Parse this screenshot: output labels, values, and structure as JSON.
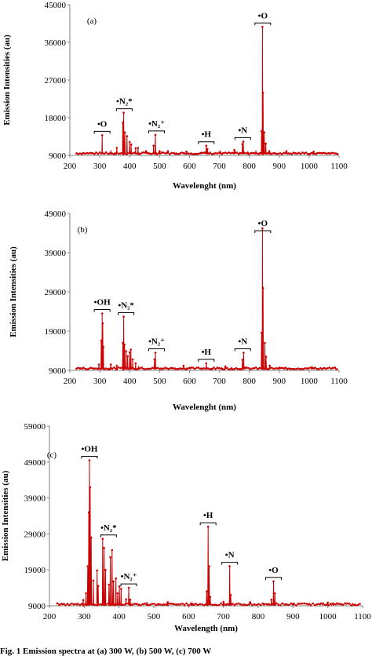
{
  "caption": "Fig. 1  Emission spectra at (a) 300 W, (b) 500 W, (c) 700 W",
  "chart_data": [
    {
      "type": "line",
      "panel_label": "(a)",
      "xlabel": "Wavelenght (nm)",
      "ylabel": "Emission Intensities (au)",
      "xlim": [
        200,
        1100
      ],
      "ylim": [
        9000,
        45000
      ],
      "xticks": [
        "200",
        "300",
        "400",
        "500",
        "600",
        "700",
        "800",
        "900",
        "1000",
        "1100"
      ],
      "yticks": [
        "9000",
        "18000",
        "27000",
        "36000",
        "45000"
      ],
      "color": "#cc0000",
      "baseline": 9500,
      "peaks": [
        [
          308,
          13800
        ],
        [
          337,
          10200
        ],
        [
          357,
          10800
        ],
        [
          377,
          16800
        ],
        [
          380,
          19200
        ],
        [
          384,
          14500
        ],
        [
          391,
          13600
        ],
        [
          400,
          12200
        ],
        [
          405,
          11600
        ],
        [
          420,
          10700
        ],
        [
          428,
          10800
        ],
        [
          455,
          10000
        ],
        [
          480,
          11300
        ],
        [
          486,
          13900
        ],
        [
          500,
          10000
        ],
        [
          528,
          10000
        ],
        [
          590,
          9900
        ],
        [
          656,
          11300
        ],
        [
          660,
          10500
        ],
        [
          703,
          10200
        ],
        [
          750,
          10300
        ],
        [
          777,
          11700
        ],
        [
          780,
          12300
        ],
        [
          795,
          10000
        ],
        [
          822,
          10200
        ],
        [
          841,
          14800
        ],
        [
          844,
          39700
        ],
        [
          846,
          24000
        ],
        [
          850,
          14500
        ],
        [
          855,
          11800
        ],
        [
          867,
          10000
        ],
        [
          924,
          10000
        ],
        [
          1015,
          9900
        ]
      ],
      "annotations": [
        {
          "text": "•O",
          "x": 308
        },
        {
          "text": "•N₂*",
          "x": 382
        },
        {
          "text": "•N₂⁺",
          "x": 490
        },
        {
          "text": "•H",
          "x": 656
        },
        {
          "text": "•N",
          "x": 778
        },
        {
          "text": "•O",
          "x": 845
        }
      ]
    },
    {
      "type": "line",
      "panel_label": "(b)",
      "xlabel": "Wavelenght (nm)",
      "ylabel": "Emission Intensities (au)",
      "xlim": [
        200,
        1100
      ],
      "ylim": [
        9000,
        49000
      ],
      "xticks": [
        "200",
        "300",
        "400",
        "500",
        "600",
        "700",
        "800",
        "900",
        "1000",
        "1100"
      ],
      "yticks": [
        "9000",
        "19000",
        "29000",
        "39000",
        "49000"
      ],
      "color": "#cc0000",
      "baseline": 9500,
      "peaks": [
        [
          297,
          10500
        ],
        [
          305,
          16600
        ],
        [
          308,
          23500
        ],
        [
          310,
          21000
        ],
        [
          312,
          15000
        ],
        [
          337,
          10500
        ],
        [
          357,
          10200
        ],
        [
          377,
          16000
        ],
        [
          380,
          22700
        ],
        [
          383,
          15600
        ],
        [
          388,
          13900
        ],
        [
          393,
          12600
        ],
        [
          400,
          13600
        ],
        [
          404,
          14300
        ],
        [
          410,
          11800
        ],
        [
          420,
          10800
        ],
        [
          430,
          10100
        ],
        [
          483,
          11800
        ],
        [
          486,
          13500
        ],
        [
          580,
          10200
        ],
        [
          656,
          10800
        ],
        [
          720,
          10000
        ],
        [
          777,
          11700
        ],
        [
          781,
          13500
        ],
        [
          841,
          18600
        ],
        [
          844,
          45200
        ],
        [
          846,
          30000
        ],
        [
          852,
          16000
        ],
        [
          856,
          12500
        ],
        [
          868,
          10200
        ],
        [
          900,
          10000
        ],
        [
          1010,
          10100
        ]
      ],
      "annotations": [
        {
          "text": "•OH",
          "x": 308
        },
        {
          "text": "•N₂*",
          "x": 388
        },
        {
          "text": "•N₂⁺",
          "x": 490
        },
        {
          "text": "•H",
          "x": 656
        },
        {
          "text": "•N",
          "x": 778
        },
        {
          "text": "•O",
          "x": 845
        }
      ]
    },
    {
      "type": "line",
      "panel_label": "(c)",
      "xlabel": "Wavelength (nm)",
      "ylabel": "Emission Intensities (au)",
      "xlim": [
        200,
        1100
      ],
      "ylim": [
        9000,
        59000
      ],
      "xticks": [
        "200",
        "300",
        "400",
        "500",
        "600",
        "700",
        "800",
        "900",
        "1000",
        "1100"
      ],
      "yticks": [
        "9000",
        "19000",
        "29000",
        "39000",
        "49000",
        "59000"
      ],
      "color": "#cc0000",
      "baseline": 9400,
      "peaks": [
        [
          297,
          10600
        ],
        [
          305,
          12500
        ],
        [
          310,
          20000
        ],
        [
          313,
          35000
        ],
        [
          315,
          49500
        ],
        [
          317,
          42000
        ],
        [
          320,
          28000
        ],
        [
          326,
          16000
        ],
        [
          337,
          18800
        ],
        [
          340,
          14500
        ],
        [
          353,
          27600
        ],
        [
          357,
          25100
        ],
        [
          361,
          19000
        ],
        [
          371,
          14900
        ],
        [
          375,
          22500
        ],
        [
          380,
          24500
        ],
        [
          384,
          15800
        ],
        [
          391,
          16600
        ],
        [
          396,
          12500
        ],
        [
          401,
          14400
        ],
        [
          406,
          13700
        ],
        [
          420,
          10800
        ],
        [
          428,
          14000
        ],
        [
          432,
          10700
        ],
        [
          480,
          10100
        ],
        [
          540,
          10000
        ],
        [
          610,
          10000
        ],
        [
          652,
          13000
        ],
        [
          656,
          31000
        ],
        [
          659,
          20000
        ],
        [
          662,
          11500
        ],
        [
          700,
          10100
        ],
        [
          718,
          20000
        ],
        [
          721,
          12000
        ],
        [
          777,
          10000
        ],
        [
          838,
          10700
        ],
        [
          844,
          15800
        ],
        [
          848,
          12500
        ],
        [
          900,
          9900
        ],
        [
          1000,
          9900
        ]
      ],
      "annotations": [
        {
          "text": "•OH",
          "x": 315
        },
        {
          "text": "•N₂*",
          "x": 370
        },
        {
          "text": "•N₂⁺",
          "x": 428
        },
        {
          "text": "•H",
          "x": 656
        },
        {
          "text": "•N",
          "x": 718
        },
        {
          "text": "•O",
          "x": 844
        }
      ]
    }
  ]
}
